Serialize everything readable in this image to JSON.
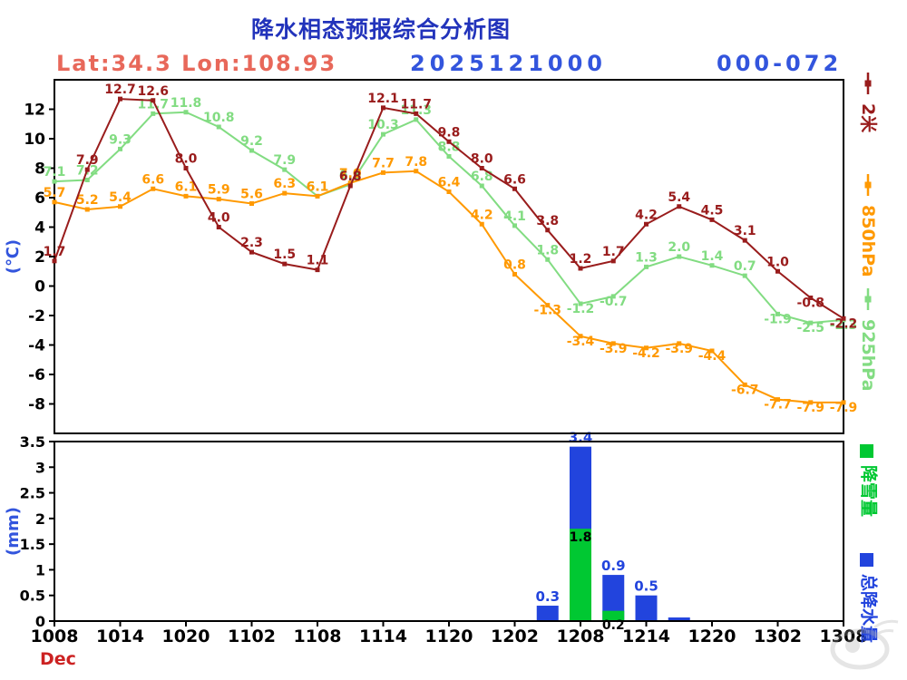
{
  "title": "降水相态预报综合分析图",
  "header": {
    "latlon": "Lat:34.3 Lon:108.93",
    "init_time": "2025121000",
    "forecast_range": "000-072"
  },
  "month_label": "Dec",
  "colors": {
    "t2m": "#991c1c",
    "h850": "#ff9900",
    "h925": "#82dc82",
    "precip_total": "#2244dd",
    "snow": "#00c832",
    "title": "#2233bb",
    "header_blue": "#3355dd",
    "latlon": "#e8685a",
    "month": "#cc2222",
    "axis": "#000000",
    "watermark": "#aaaaaa"
  },
  "chart_data": [
    {
      "type": "line",
      "title": "",
      "ylabel": "(℃)",
      "ylim": [
        -10,
        14
      ],
      "yticks": [
        12,
        10,
        8,
        6,
        4,
        2,
        0,
        -2,
        -4,
        -6,
        -8
      ],
      "x_tick_labels": [
        "1008",
        "1014",
        "1020",
        "1102",
        "1108",
        "1114",
        "1120",
        "1202",
        "1208",
        "1214",
        "1220",
        "1302",
        "1308"
      ],
      "x_step_hours": 3,
      "grid": false,
      "legend_position": "right",
      "series": [
        {
          "name": "2米",
          "color": "#991c1c",
          "values": [
            1.7,
            7.9,
            12.7,
            12.6,
            8.0,
            4.0,
            2.3,
            1.5,
            1.1,
            6.8,
            12.1,
            11.7,
            9.8,
            8.0,
            6.6,
            3.8,
            1.2,
            1.7,
            4.2,
            5.4,
            4.5,
            3.1,
            1.0,
            -0.8,
            -2.2
          ]
        },
        {
          "name": "850hPa",
          "color": "#ff9900",
          "values": [
            5.7,
            5.2,
            5.4,
            6.6,
            6.1,
            5.9,
            5.6,
            6.3,
            6.1,
            7.0,
            7.7,
            7.8,
            6.4,
            4.2,
            0.8,
            -1.3,
            -3.4,
            -3.9,
            -4.2,
            -3.9,
            -4.4,
            -6.7,
            -7.7,
            -7.9,
            -7.9
          ]
        },
        {
          "name": "925hPa",
          "color": "#82dc82",
          "values": [
            7.1,
            7.2,
            9.3,
            11.7,
            11.8,
            10.8,
            9.2,
            7.9,
            6.1,
            6.9,
            10.3,
            11.3,
            8.8,
            6.8,
            4.1,
            1.8,
            -1.2,
            -0.7,
            1.3,
            2.0,
            1.4,
            0.7,
            -1.9,
            -2.5,
            -2.3
          ]
        }
      ]
    },
    {
      "type": "bar",
      "title": "",
      "ylabel": "(mm)",
      "ylim": [
        0,
        3.5
      ],
      "yticks": [
        0,
        0.5,
        1,
        1.5,
        2,
        2.5,
        3,
        3.5
      ],
      "grid": false,
      "legend_position": "right",
      "series": [
        {
          "name": "总降水量",
          "color": "#2244dd"
        },
        {
          "name": "降雪量",
          "color": "#00c832"
        }
      ],
      "bars": [
        {
          "index": 15,
          "total": 0.3,
          "snow": 0,
          "total_label": "0.3"
        },
        {
          "index": 16,
          "total": 3.4,
          "snow": 1.8,
          "total_label": "3.4",
          "snow_label": "1.8"
        },
        {
          "index": 17,
          "total": 0.9,
          "snow": 0.2,
          "total_label": "0.9",
          "snow_label": "0.2"
        },
        {
          "index": 18,
          "total": 0.5,
          "snow": 0,
          "total_label": "0.5"
        },
        {
          "index": 19,
          "total": 0.07,
          "snow": 0
        }
      ]
    }
  ]
}
